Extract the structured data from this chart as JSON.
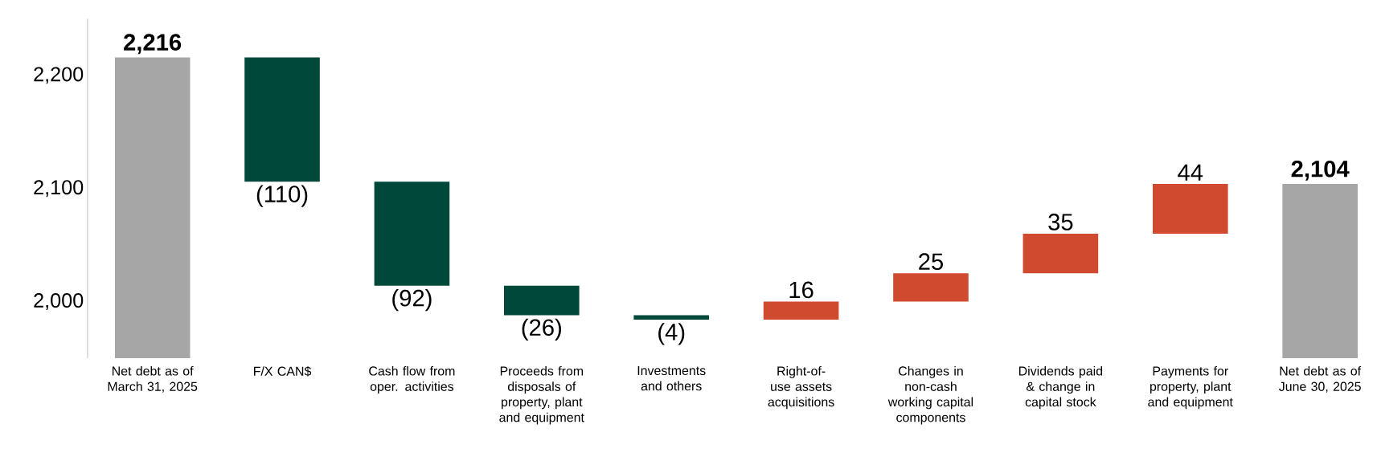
{
  "chart_data": {
    "type": "bar",
    "categories": [
      "Net debt as of March 31, 2025",
      "F/X CAN$",
      "Cash flow from oper. activities",
      "Proceeds from disposals of property, plant and equipment",
      "Investments and others",
      "Right-of-use assets acquisitions",
      "Changes in non-cash working capital components",
      "Dividends paid & change in capital stock",
      "Payments for property, plant and equipment",
      "Net debt as of June 30, 2025"
    ],
    "values": [
      2216,
      -110,
      -92,
      -26,
      -4,
      16,
      25,
      35,
      44,
      2104
    ],
    "base": [
      0,
      2216,
      2106,
      2014,
      1988,
      1984,
      2000,
      2025,
      2060,
      0
    ],
    "value_labels": [
      "2,216",
      "(110)",
      "(92)",
      "(26)",
      "(4)",
      "16",
      "25",
      "35",
      "44",
      "2,104"
    ],
    "colors": [
      "#a6a6a6",
      "#00483a",
      "#00483a",
      "#00483a",
      "#00483a",
      "#cf4a2e",
      "#cf4a2e",
      "#cf4a2e",
      "#cf4a2e",
      "#a6a6a6"
    ],
    "ylim": [
      1950,
      2250
    ],
    "yticks": [
      {
        "value": 2000,
        "label": "2,000"
      },
      {
        "value": 2100,
        "label": "2,100"
      },
      {
        "value": 2200,
        "label": "2,200"
      }
    ],
    "grid": false
  }
}
